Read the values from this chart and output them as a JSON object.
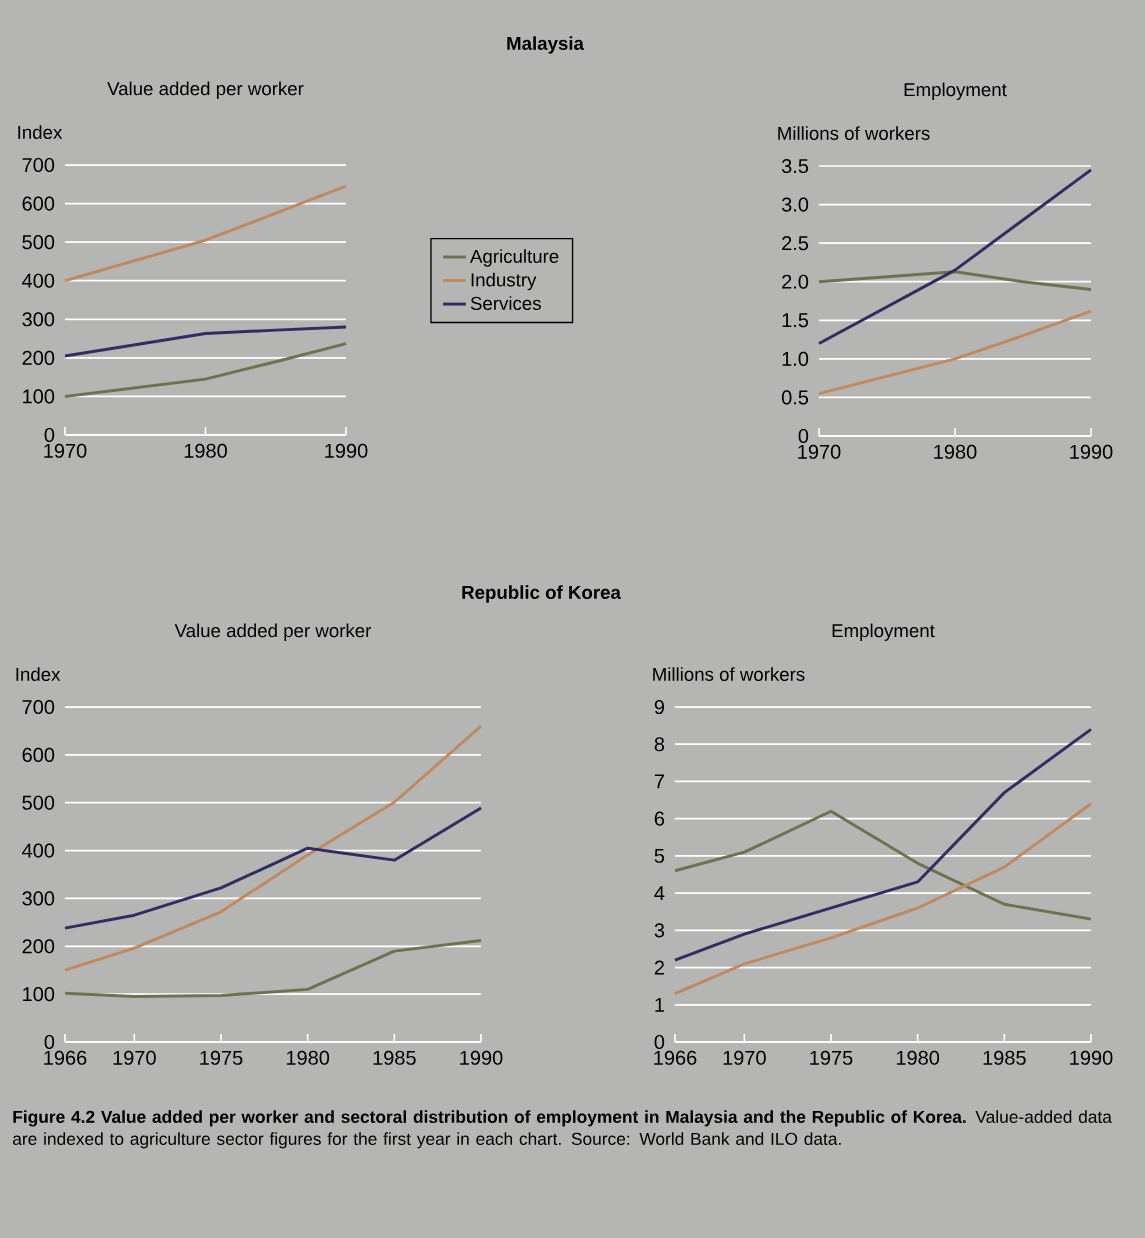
{
  "chart_data": [
    {
      "type": "line",
      "title": "Value added per worker",
      "ylabel": "Index",
      "annotations": [
        "Malaysia"
      ],
      "x": [
        1970,
        1980,
        1985,
        1990
      ],
      "xlim": [
        1970,
        1990
      ],
      "xticks": [
        1970,
        1980,
        1990
      ],
      "ylim": [
        0,
        700
      ],
      "yticks": [
        0,
        100,
        200,
        300,
        400,
        500,
        600,
        700
      ],
      "grid": "y",
      "legend": "right",
      "series": [
        {
          "name": "Agriculture",
          "color": "#6b7350",
          "values": [
            100,
            145,
            190,
            237
          ]
        },
        {
          "name": "Industry",
          "color": "#c08a5e",
          "values": [
            400,
            505,
            575,
            645
          ]
        },
        {
          "name": "Services",
          "color": "#2f2d62",
          "values": [
            205,
            263,
            272,
            280
          ]
        }
      ]
    },
    {
      "type": "line",
      "title": "Employment",
      "ylabel": "Millions of workers",
      "x": [
        1970,
        1980,
        1985,
        1990
      ],
      "xlim": [
        1970,
        1990
      ],
      "xticks": [
        1970,
        1980,
        1990
      ],
      "ylim": [
        0,
        3.5
      ],
      "yticks": [
        0,
        {
          "value": 0.5,
          "label": "0.5"
        },
        {
          "value": 1,
          "label": "1.0"
        },
        {
          "value": 1.5,
          "label": "1.5"
        },
        {
          "value": 2,
          "label": "2.0"
        },
        {
          "value": 2.5,
          "label": "2.5"
        },
        {
          "value": 3,
          "label": "3.0"
        },
        {
          "value": 3.5,
          "label": "3.5"
        }
      ],
      "grid": "y",
      "series": [
        {
          "color": "#6b7350",
          "values": [
            2.0,
            2.13,
            2.0,
            1.9
          ]
        },
        {
          "color": "#c08a5e",
          "values": [
            0.55,
            1.0,
            1.3,
            1.62
          ]
        },
        {
          "color": "#2f2d62",
          "values": [
            1.2,
            2.15,
            2.8,
            3.45
          ]
        }
      ]
    },
    {
      "type": "line",
      "title": "Value added per worker",
      "ylabel": "Index",
      "annotations": [
        "Republic of Korea"
      ],
      "x": [
        1966,
        1970,
        1975,
        1980,
        1985,
        1990
      ],
      "xlim": [
        1966,
        1990
      ],
      "xticks": [
        1966,
        1970,
        1975,
        1980,
        1985,
        1990
      ],
      "ylim": [
        0,
        700
      ],
      "yticks": [
        0,
        100,
        200,
        300,
        400,
        500,
        600,
        700
      ],
      "grid": "y",
      "series": [
        {
          "color": "#6b7350",
          "values": [
            102,
            95,
            97,
            110,
            190,
            212
          ]
        },
        {
          "color": "#c08a5e",
          "values": [
            150,
            196,
            272,
            391,
            501,
            660
          ]
        },
        {
          "color": "#2f2d62",
          "values": [
            238,
            265,
            322,
            405,
            380,
            489
          ]
        }
      ]
    },
    {
      "type": "line",
      "title": "Employment",
      "ylabel": "Millions of workers",
      "annotations": [
        "**Figure 4.2 Value added per worker and sectoral distribution of employment in Malaysia and the Republic of Korea.** Value-added data are indexed to agriculture sector figures for the first year in each chart.  Source: World Bank and ILO data."
      ],
      "x": [
        1966,
        1970,
        1975,
        1980,
        1985,
        1990
      ],
      "xlim": [
        1966,
        1990
      ],
      "xticks": [
        1966,
        1970,
        1975,
        1980,
        1985,
        1990
      ],
      "ylim": [
        0,
        9
      ],
      "yticks": [
        0,
        1,
        2,
        3,
        4,
        5,
        6,
        7,
        8,
        9
      ],
      "grid": "y",
      "series": [
        {
          "color": "#6b7350",
          "values": [
            4.6,
            5.1,
            6.2,
            4.8,
            3.7,
            3.3
          ]
        },
        {
          "color": "#c08a5e",
          "values": [
            1.3,
            2.1,
            2.8,
            3.6,
            4.7,
            6.4
          ]
        },
        {
          "color": "#2f2d62",
          "values": [
            2.2,
            2.9,
            3.6,
            4.3,
            6.7,
            8.4
          ]
        }
      ]
    }
  ]
}
